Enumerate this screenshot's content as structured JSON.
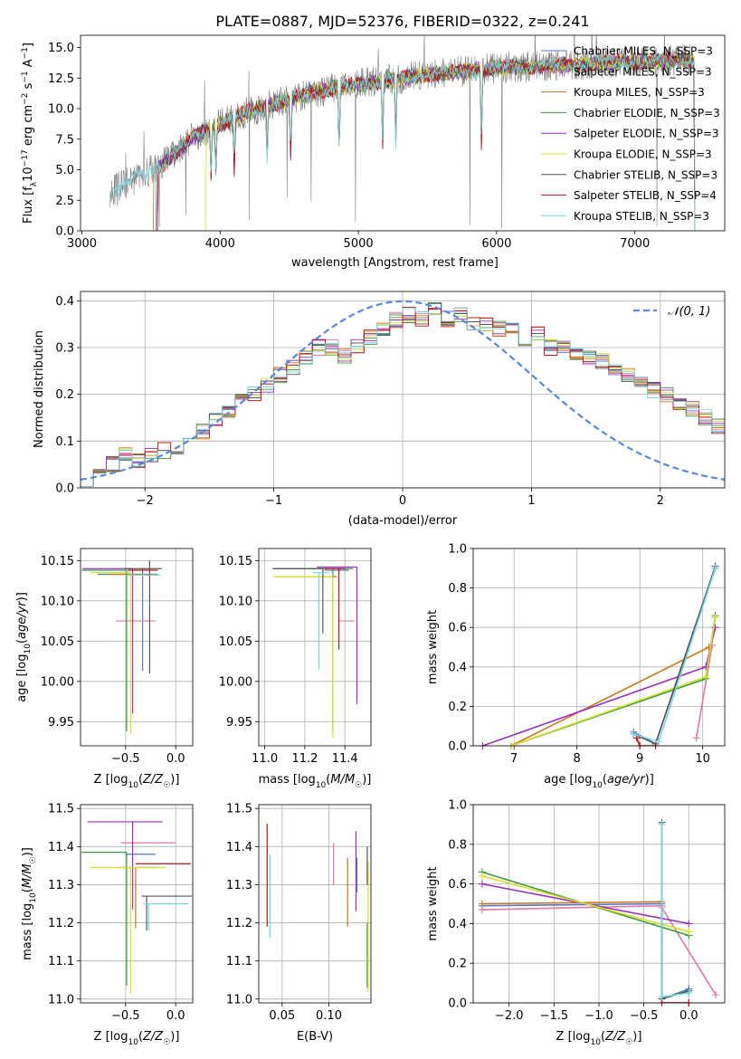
{
  "figure_title": "PLATE=0887, MJD=52376, FIBERID=0322, z=0.241",
  "colors": {
    "Chabrier MILES": "#4e79c8",
    "Salpeter MILES": "#e377a8",
    "Kroupa MILES": "#c8761e",
    "Chabrier ELODIE": "#3d9a3d",
    "Salpeter ELODIE": "#9a30b8",
    "Kroupa ELODIE": "#d4e02c",
    "Chabrier STELIB": "#555555",
    "Salpeter STELIB": "#b81414",
    "Kroupa STELIB": "#7ad6de",
    "data": "#808080",
    "normal": "#5b87d6"
  },
  "chart_data": [
    {
      "type": "line",
      "title": "PLATE=0887, MJD=52376, FIBERID=0322, z=0.241",
      "xlabel": "wavelength [Angstrom, rest frame]",
      "ylabel": "Flux [fλ 10⁻¹⁷ erg cm⁻² s⁻¹ A⁻¹]",
      "xlim": [
        2990,
        7650
      ],
      "ylim": [
        0,
        16
      ],
      "xticks": [
        "3000",
        "4000",
        "5000",
        "6000",
        "7000"
      ],
      "yticks": [
        "0.0",
        "2.5",
        "5.0",
        "7.5",
        "10.0",
        "12.5",
        "15.0"
      ],
      "legend_placement": "right",
      "legend": [
        "Chabrier MILES, N_SSP=3",
        "Salpeter MILES, N_SSP=3",
        "Kroupa MILES, N_SSP=3",
        "Chabrier ELODIE, N_SSP=3",
        "Salpeter ELODIE, N_SSP=3",
        "Kroupa ELODIE, N_SSP=3",
        "Chabrier STELIB, N_SSP=3",
        "Salpeter STELIB, N_SSP=4",
        "Kroupa STELIB, N_SSP=3"
      ],
      "continuum": {
        "x": [
          3200,
          3400,
          3600,
          3800,
          4000,
          4200,
          4400,
          4600,
          4800,
          5000,
          5200,
          5400,
          5600,
          5800,
          6000,
          6200,
          6400,
          6600,
          6800,
          7000,
          7200,
          7400
        ],
        "y": [
          3.2,
          4.3,
          5.6,
          7.6,
          8.8,
          9.7,
          10.4,
          11.1,
          11.6,
          12.0,
          12.3,
          12.6,
          12.9,
          13.1,
          13.3,
          13.4,
          13.5,
          13.6,
          13.8,
          13.8,
          13.9,
          14.0
        ]
      },
      "model_start": {
        "Kroupa MILES": 3520,
        "Chabrier MILES": 3540,
        "Salpeter MILES": 3550,
        "Kroupa ELODIE": 3900,
        "Kroupa STELIB": 3200
      },
      "absorption_lines": [
        3934,
        3969,
        4102,
        4340,
        4510,
        4861,
        5175,
        5270,
        5890
      ]
    },
    {
      "type": "bar",
      "subtype": "step-histogram",
      "xlabel": "(data-model)/error",
      "ylabel": "Normed distribution",
      "xlim": [
        -2.5,
        2.5
      ],
      "ylim": [
        0,
        0.42
      ],
      "xticks": [
        "−2",
        "−1",
        "0",
        "1",
        "2"
      ],
      "yticks": [
        "0.0",
        "0.1",
        "0.2",
        "0.3",
        "0.4"
      ],
      "bin_width": 0.1,
      "legend": [
        "𝒩(0, 1)"
      ],
      "legend_placement": "top-right",
      "histogram_template": [
        0.02,
        0.03,
        0.05,
        0.07,
        0.06,
        0.07,
        0.08,
        0.08,
        0.1,
        0.12,
        0.15,
        0.16,
        0.19,
        0.2,
        0.22,
        0.24,
        0.26,
        0.28,
        0.3,
        0.3,
        0.28,
        0.3,
        0.32,
        0.34,
        0.36,
        0.37,
        0.36,
        0.38,
        0.36,
        0.37,
        0.35,
        0.35,
        0.34,
        0.34,
        0.32,
        0.33,
        0.3,
        0.3,
        0.29,
        0.28,
        0.27,
        0.25,
        0.24,
        0.23,
        0.21,
        0.2,
        0.18,
        0.17,
        0.15,
        0.13,
        0.12
      ]
    },
    {
      "type": "scatter",
      "subtype": "error-bars",
      "xlabel": "Z [log₁₀(Z/Z☉)]",
      "ylabel": "age  [log₁₀(age/yr)]",
      "xlim": [
        -0.95,
        0.17
      ],
      "ylim": [
        9.92,
        10.165
      ],
      "xticks": [
        "−0.5",
        "0.0"
      ],
      "yticks": [
        "9.95",
        "10.00",
        "10.05",
        "10.10",
        "10.15"
      ],
      "points": [
        {
          "model": "Chabrier MILES",
          "x": -0.33,
          "y": 10.133,
          "xerr": [
            0.45,
            0.15
          ],
          "yerr": [
            0.12,
            0.008
          ]
        },
        {
          "model": "Salpeter MILES",
          "x": -0.35,
          "y": 10.075,
          "xerr": [
            0.25,
            0.15
          ],
          "yerr": [
            0.0,
            0.0
          ]
        },
        {
          "model": "Kroupa MILES",
          "x": -0.4,
          "y": 10.133,
          "xerr": [
            0.25,
            0.2
          ],
          "yerr": [
            0.0,
            0.0
          ]
        },
        {
          "model": "Chabrier ELODIE",
          "x": -0.49,
          "y": 10.138,
          "xerr": [
            0.45,
            0.0
          ],
          "yerr": [
            0.2,
            0.0
          ]
        },
        {
          "model": "Salpeter ELODIE",
          "x": -0.43,
          "y": 10.14,
          "xerr": [
            0.5,
            0.0
          ],
          "yerr": [
            0.18,
            0.0
          ]
        },
        {
          "model": "Kroupa ELODIE",
          "x": -0.45,
          "y": 10.135,
          "xerr": [
            0.4,
            0.0
          ],
          "yerr": [
            0.2,
            0.0
          ]
        },
        {
          "model": "Chabrier STELIB",
          "x": -0.26,
          "y": 10.14,
          "xerr": [
            0.25,
            0.12
          ],
          "yerr": [
            0.13,
            0.01
          ]
        },
        {
          "model": "Salpeter STELIB",
          "x": -0.28,
          "y": 10.138,
          "xerr": [
            0.2,
            0.1
          ],
          "yerr": [
            0.0,
            0.0
          ]
        },
        {
          "model": "Kroupa STELIB",
          "x": -0.3,
          "y": 10.132,
          "xerr": [
            0.2,
            0.15
          ],
          "yerr": [
            0.0,
            0.0
          ]
        }
      ]
    },
    {
      "type": "scatter",
      "subtype": "error-bars",
      "xlabel": "mass [log₁₀(M/M☉)]",
      "xlim": [
        10.97,
        11.53
      ],
      "ylim": [
        9.92,
        10.165
      ],
      "xticks": [
        "11.0",
        "11.2",
        "11.4"
      ],
      "yticks": [
        "9.95",
        "10.00",
        "10.05",
        "10.10",
        "10.15"
      ],
      "points": [
        {
          "model": "Chabrier MILES",
          "x": 11.36,
          "y": 10.138,
          "xerr": [
            0.06,
            0.06
          ],
          "yerr": [
            0.0,
            0.0
          ]
        },
        {
          "model": "Salpeter MILES",
          "x": 11.41,
          "y": 10.075,
          "xerr": [
            0.04,
            0.04
          ],
          "yerr": [
            0.0,
            0.0
          ]
        },
        {
          "model": "Kroupa MILES",
          "x": 11.36,
          "y": 10.13,
          "xerr": [
            0.3,
            0.0
          ],
          "yerr": [
            0.0,
            0.0
          ]
        },
        {
          "model": "Chabrier ELODIE",
          "x": 11.34,
          "y": 10.14,
          "xerr": [
            0.3,
            0.1
          ],
          "yerr": [
            0.2,
            0.0
          ]
        },
        {
          "model": "Salpeter ELODIE",
          "x": 11.46,
          "y": 10.142,
          "xerr": [
            0.2,
            0.0
          ],
          "yerr": [
            0.17,
            0.0
          ]
        },
        {
          "model": "Kroupa ELODIE",
          "x": 11.34,
          "y": 10.13,
          "xerr": [
            0.3,
            0.0
          ],
          "yerr": [
            0.2,
            0.0
          ]
        },
        {
          "model": "Chabrier STELIB",
          "x": 11.29,
          "y": 10.14,
          "xerr": [
            0.25,
            0.02
          ],
          "yerr": [
            0.08,
            0.0
          ]
        },
        {
          "model": "Salpeter STELIB",
          "x": 11.37,
          "y": 10.14,
          "xerr": [
            0.07,
            0.03
          ],
          "yerr": [
            0.1,
            0.0
          ]
        },
        {
          "model": "Kroupa STELIB",
          "x": 11.27,
          "y": 10.135,
          "xerr": [
            0.03,
            0.05
          ],
          "yerr": [
            0.12,
            0.0
          ]
        }
      ]
    },
    {
      "type": "line",
      "xlabel": "age  [log₁₀(age/yr)]",
      "ylabel": "mass weight",
      "xlim": [
        6.35,
        10.35
      ],
      "ylim": [
        0,
        1.0
      ],
      "xticks": [
        "7",
        "8",
        "9",
        "10"
      ],
      "yticks": [
        "0.0",
        "0.2",
        "0.4",
        "0.6",
        "0.8",
        "1.0"
      ],
      "series": [
        {
          "model": "Chabrier MILES",
          "x": [
            8.9,
            9.25,
            10.2
          ],
          "y": [
            0.07,
            0.01,
            0.9
          ]
        },
        {
          "model": "Salpeter MILES",
          "x": [
            9.9,
            10.15
          ],
          "y": [
            0.04,
            0.51
          ]
        },
        {
          "model": "Kroupa MILES",
          "x": [
            6.95,
            10.1
          ],
          "y": [
            0.0,
            0.5
          ]
        },
        {
          "model": "Chabrier ELODIE",
          "x": [
            6.95,
            10.05,
            10.2
          ],
          "y": [
            0.0,
            0.34,
            0.66
          ]
        },
        {
          "model": "Salpeter ELODIE",
          "x": [
            6.5,
            10.05,
            10.2
          ],
          "y": [
            0.0,
            0.4,
            0.6
          ]
        },
        {
          "model": "Kroupa ELODIE",
          "x": [
            6.95,
            10.05,
            10.2
          ],
          "y": [
            0.0,
            0.35,
            0.65
          ]
        },
        {
          "model": "Chabrier STELIB",
          "x": [
            8.9,
            9.25,
            10.2
          ],
          "y": [
            0.06,
            0.01,
            0.91
          ]
        },
        {
          "model": "Salpeter STELIB",
          "x": [
            8.95,
            9.0,
            9.25
          ],
          "y": [
            0.04,
            0.0,
            0.0
          ]
        },
        {
          "model": "Kroupa STELIB",
          "x": [
            8.9,
            9.3,
            10.2
          ],
          "y": [
            0.06,
            0.02,
            0.9
          ]
        }
      ]
    },
    {
      "type": "scatter",
      "subtype": "error-bars",
      "xlabel": "Z [log₁₀(Z/Z☉)]",
      "ylabel": "mass [log₁₀(M/M☉)]",
      "xlim": [
        -0.95,
        0.17
      ],
      "ylim": [
        10.99,
        11.51
      ],
      "xticks": [
        "−0.5",
        "0.0"
      ],
      "yticks": [
        "11.0",
        "11.1",
        "11.2",
        "11.3",
        "11.4",
        "11.5"
      ],
      "points": [
        {
          "model": "Chabrier MILES",
          "x": -0.3,
          "y": 11.38,
          "xerr": [
            0.2,
            0.1
          ],
          "yerr": [
            0.0,
            0.0
          ]
        },
        {
          "model": "Salpeter MILES",
          "x": -0.3,
          "y": 11.41,
          "xerr": [
            0.25,
            0.3
          ],
          "yerr": [
            0.0,
            0.0
          ]
        },
        {
          "model": "Kroupa MILES",
          "x": -0.4,
          "y": 11.345,
          "xerr": [
            0.2,
            0.2
          ],
          "yerr": [
            0.16,
            0.0
          ]
        },
        {
          "model": "Chabrier ELODIE",
          "x": -0.49,
          "y": 11.385,
          "xerr": [
            0.45,
            0.0
          ],
          "yerr": [
            0.35,
            0.0
          ]
        },
        {
          "model": "Salpeter ELODIE",
          "x": -0.43,
          "y": 11.465,
          "xerr": [
            0.45,
            0.3
          ],
          "yerr": [
            0.23,
            0.0
          ]
        },
        {
          "model": "Kroupa ELODIE",
          "x": -0.45,
          "y": 11.345,
          "xerr": [
            0.4,
            0.35
          ],
          "yerr": [
            0.33,
            0.0
          ]
        },
        {
          "model": "Chabrier STELIB",
          "x": -0.29,
          "y": 11.27,
          "xerr": [
            0.05,
            0.45
          ],
          "yerr": [
            0.09,
            0.0
          ]
        },
        {
          "model": "Salpeter STELIB",
          "x": -0.25,
          "y": 11.355,
          "xerr": [
            0.15,
            0.4
          ],
          "yerr": [
            0.0,
            0.0
          ]
        },
        {
          "model": "Kroupa STELIB",
          "x": -0.27,
          "y": 11.25,
          "xerr": [
            0.05,
            0.4
          ],
          "yerr": [
            0.07,
            0.0
          ]
        }
      ]
    },
    {
      "type": "scatter",
      "subtype": "error-bars",
      "xlabel": "E(B-V)",
      "xlim": [
        0.025,
        0.145
      ],
      "ylim": [
        10.99,
        11.51
      ],
      "xticks": [
        "0.05",
        "0.10"
      ],
      "yticks": [
        "11.0",
        "11.1",
        "11.2",
        "11.3",
        "11.4",
        "11.5"
      ],
      "points": [
        {
          "model": "Chabrier MILES",
          "x": 0.13,
          "y": 11.35,
          "yerr": [
            0.07,
            0.02
          ]
        },
        {
          "model": "Salpeter MILES",
          "x": 0.105,
          "y": 11.35,
          "yerr": [
            0.05,
            0.06
          ]
        },
        {
          "model": "Kroupa MILES",
          "x": 0.12,
          "y": 11.28,
          "yerr": [
            0.09,
            0.09
          ]
        },
        {
          "model": "Chabrier ELODIE",
          "x": 0.141,
          "y": 11.2,
          "yerr": [
            0.17,
            0.0
          ]
        },
        {
          "model": "Salpeter ELODIE",
          "x": 0.129,
          "y": 11.35,
          "yerr": [
            0.12,
            0.09
          ]
        },
        {
          "model": "Kroupa ELODIE",
          "x": 0.142,
          "y": 11.2,
          "yerr": [
            0.18,
            0.16
          ]
        },
        {
          "model": "Chabrier STELIB",
          "x": 0.141,
          "y": 11.3,
          "yerr": [
            0.0,
            0.1
          ]
        },
        {
          "model": "Salpeter STELIB",
          "x": 0.034,
          "y": 11.32,
          "yerr": [
            0.13,
            0.14
          ]
        },
        {
          "model": "Kroupa STELIB",
          "x": 0.037,
          "y": 11.27,
          "yerr": [
            0.11,
            0.11
          ]
        }
      ]
    },
    {
      "type": "line",
      "xlabel": "Z [log₁₀(Z/Z☉)]",
      "ylabel": "mass weight",
      "xlim": [
        -2.4,
        0.4
      ],
      "ylim": [
        0,
        1.0
      ],
      "xticks": [
        "−2.0",
        "−1.5",
        "−1.0",
        "−0.5",
        "0.0"
      ],
      "yticks": [
        "0.0",
        "0.2",
        "0.4",
        "0.6",
        "0.8",
        "1.0"
      ],
      "series": [
        {
          "model": "Chabrier MILES",
          "x": [
            -2.3,
            -0.3,
            -0.3,
            0.0
          ],
          "y": [
            0.49,
            0.5,
            0.02,
            0.07
          ]
        },
        {
          "model": "Salpeter MILES",
          "x": [
            -2.3,
            -0.3,
            -0.3,
            0.3
          ],
          "y": [
            0.47,
            0.49,
            0.48,
            0.04
          ]
        },
        {
          "model": "Kroupa MILES",
          "x": [
            -2.3,
            -0.3,
            -0.3,
            0.0
          ],
          "y": [
            0.5,
            0.51,
            0.0,
            0.0
          ]
        },
        {
          "model": "Chabrier ELODIE",
          "x": [
            -2.3,
            0.0
          ],
          "y": [
            0.66,
            0.34
          ]
        },
        {
          "model": "Salpeter ELODIE",
          "x": [
            -2.3,
            0.0
          ],
          "y": [
            0.6,
            0.4
          ]
        },
        {
          "model": "Kroupa ELODIE",
          "x": [
            -2.3,
            0.0,
            0.0
          ],
          "y": [
            0.64,
            0.36,
            0.36
          ]
        },
        {
          "model": "Chabrier STELIB",
          "x": [
            -0.3,
            -0.3,
            0.0
          ],
          "y": [
            0.91,
            0.02,
            0.06
          ]
        },
        {
          "model": "Salpeter STELIB",
          "x": [
            -0.3,
            0.0
          ],
          "y": [
            0.0,
            0.0
          ]
        },
        {
          "model": "Kroupa STELIB",
          "x": [
            -0.3,
            -0.3,
            0.0
          ],
          "y": [
            0.9,
            0.03,
            0.05
          ]
        }
      ]
    }
  ]
}
